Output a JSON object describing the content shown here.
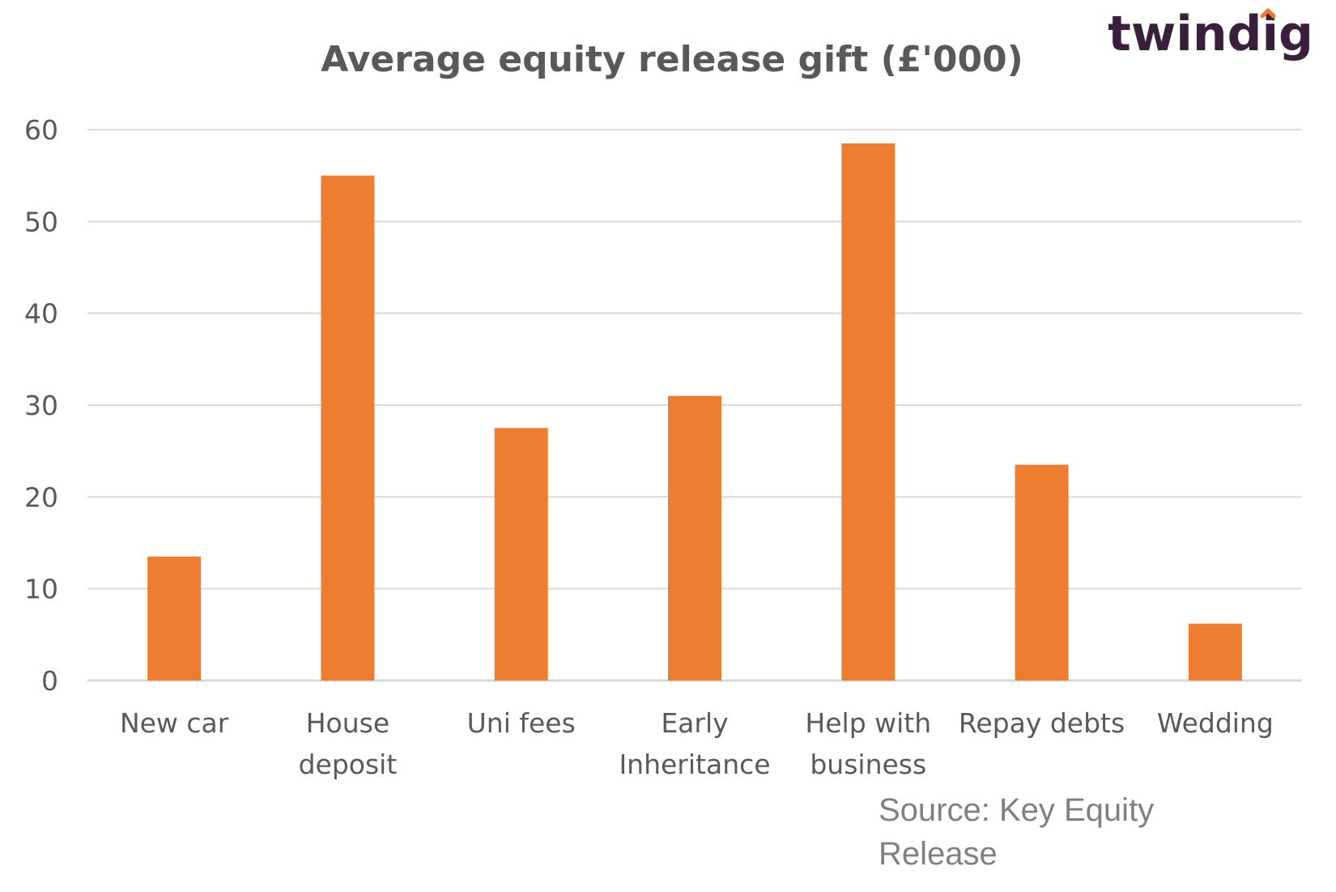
{
  "brand": {
    "name": "twindig",
    "accent": "#f07a2a",
    "text_color": "#3a1f3d"
  },
  "chart_data": {
    "type": "bar",
    "title": "Average equity release gift (£'000)",
    "categories": [
      [
        "New car"
      ],
      [
        "House",
        "deposit"
      ],
      [
        "Uni fees"
      ],
      [
        "Early",
        "Inheritance"
      ],
      [
        "Help with",
        "business"
      ],
      [
        "Repay debts"
      ],
      [
        "Wedding"
      ]
    ],
    "values": [
      13.5,
      55,
      27.5,
      31,
      58.5,
      23.5,
      6.2
    ],
    "ylim": [
      0,
      60
    ],
    "yticks": [
      "0",
      "10",
      "20",
      "30",
      "40",
      "50",
      "60"
    ],
    "grid": true,
    "bar_color": "#ed7d31",
    "grid_color": "#d9d9d9"
  },
  "source": {
    "lines": [
      "Source: Key Equity",
      "Release"
    ]
  }
}
